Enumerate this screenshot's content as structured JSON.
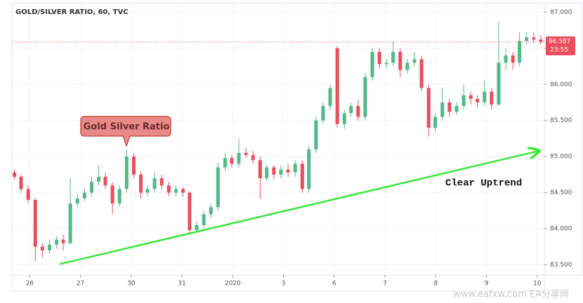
{
  "chart_data": {
    "type": "candlestick",
    "title": "GOLD/SILVER RATIO, 60, TVC",
    "up_color": "#53b987",
    "down_color": "#eb4d5c",
    "grid": true,
    "xlim": [
      -0.35,
      10.14
    ],
    "ylim": [
      83.36,
      87.12
    ],
    "xticks": [
      {
        "value": 0,
        "label": "26"
      },
      {
        "value": 1,
        "label": "27"
      },
      {
        "value": 2,
        "label": "30"
      },
      {
        "value": 3,
        "label": "31"
      },
      {
        "value": 4,
        "label": "2020"
      },
      {
        "value": 5,
        "label": "3"
      },
      {
        "value": 6,
        "label": "6"
      },
      {
        "value": 7,
        "label": "7"
      },
      {
        "value": 8,
        "label": "8"
      },
      {
        "value": 9,
        "label": "9"
      },
      {
        "value": 10,
        "label": "10"
      }
    ],
    "yticks": [
      {
        "value": 83.5,
        "label": "83.500"
      },
      {
        "value": 84,
        "label": "84.000"
      },
      {
        "value": 84.5,
        "label": "84.500"
      },
      {
        "value": 85,
        "label": "85.000"
      },
      {
        "value": 85.5,
        "label": "85.500"
      },
      {
        "value": 86,
        "label": "86.000"
      },
      {
        "value": 86.5,
        "label": "86.500"
      },
      {
        "value": 87,
        "label": "87.000"
      }
    ],
    "candles": [
      [
        -0.3,
        84.78,
        84.82,
        84.68,
        84.72
      ],
      [
        -0.17,
        84.72,
        84.75,
        84.5,
        84.55
      ],
      [
        -0.03,
        84.55,
        84.6,
        84.35,
        84.4
      ],
      [
        0.11,
        84.4,
        84.42,
        83.55,
        83.75
      ],
      [
        0.25,
        83.75,
        83.8,
        83.6,
        83.7
      ],
      [
        0.39,
        83.7,
        83.85,
        83.65,
        83.78
      ],
      [
        0.53,
        83.78,
        83.9,
        83.72,
        83.85
      ],
      [
        0.66,
        83.85,
        83.92,
        83.7,
        83.8
      ],
      [
        0.8,
        83.8,
        84.7,
        83.78,
        84.35
      ],
      [
        0.94,
        84.35,
        84.48,
        84.3,
        84.42
      ],
      [
        1.08,
        84.42,
        84.55,
        84.38,
        84.5
      ],
      [
        1.22,
        84.5,
        84.72,
        84.45,
        84.65
      ],
      [
        1.36,
        84.65,
        84.88,
        84.6,
        84.72
      ],
      [
        1.49,
        84.72,
        84.78,
        84.55,
        84.6
      ],
      [
        1.63,
        84.6,
        84.65,
        84.2,
        84.35
      ],
      [
        1.77,
        84.35,
        84.6,
        84.3,
        84.55
      ],
      [
        1.91,
        84.55,
        85.1,
        84.5,
        85.0
      ],
      [
        2.05,
        85.0,
        85.05,
        84.7,
        84.75
      ],
      [
        2.19,
        84.75,
        84.8,
        84.42,
        84.5
      ],
      [
        2.32,
        84.5,
        84.6,
        84.45,
        84.55
      ],
      [
        2.46,
        84.55,
        84.78,
        84.5,
        84.7
      ],
      [
        2.6,
        84.7,
        84.75,
        84.55,
        84.6
      ],
      [
        2.74,
        84.6,
        84.65,
        84.45,
        84.5
      ],
      [
        2.88,
        84.5,
        84.6,
        84.45,
        84.55
      ],
      [
        3.02,
        84.55,
        84.58,
        84.45,
        84.5
      ],
      [
        3.15,
        84.5,
        84.52,
        83.92,
        83.98
      ],
      [
        3.29,
        83.98,
        84.1,
        83.95,
        84.05
      ],
      [
        3.43,
        84.05,
        84.25,
        84.0,
        84.2
      ],
      [
        3.57,
        84.2,
        84.35,
        84.15,
        84.3
      ],
      [
        3.71,
        84.3,
        84.92,
        84.25,
        84.85
      ],
      [
        3.85,
        84.85,
        85.05,
        84.8,
        84.98
      ],
      [
        3.98,
        84.98,
        85.02,
        84.85,
        84.9
      ],
      [
        4.12,
        84.9,
        85.25,
        84.85,
        85.05
      ],
      [
        4.26,
        85.05,
        85.12,
        84.98,
        85.02
      ],
      [
        4.4,
        85.02,
        85.08,
        84.9,
        84.95
      ],
      [
        4.54,
        84.95,
        85.0,
        84.42,
        84.7
      ],
      [
        4.67,
        84.7,
        84.9,
        84.65,
        84.85
      ],
      [
        4.81,
        84.85,
        84.88,
        84.68,
        84.75
      ],
      [
        4.95,
        84.75,
        84.88,
        84.7,
        84.82
      ],
      [
        5.09,
        84.82,
        84.9,
        84.72,
        84.78
      ],
      [
        5.23,
        84.78,
        84.95,
        84.72,
        84.9
      ],
      [
        5.37,
        84.9,
        84.95,
        84.5,
        84.55
      ],
      [
        5.5,
        84.55,
        85.15,
        84.5,
        85.1
      ],
      [
        5.64,
        85.1,
        85.55,
        85.05,
        85.5
      ],
      [
        5.78,
        85.5,
        85.75,
        85.45,
        85.7
      ],
      [
        5.92,
        85.7,
        86.0,
        85.65,
        85.95
      ],
      [
        6.06,
        86.5,
        86.53,
        85.4,
        85.45
      ],
      [
        6.2,
        85.45,
        85.65,
        85.38,
        85.6
      ],
      [
        6.33,
        85.6,
        85.75,
        85.55,
        85.7
      ],
      [
        6.47,
        85.7,
        85.78,
        85.5,
        85.55
      ],
      [
        6.61,
        85.55,
        86.15,
        85.5,
        86.1
      ],
      [
        6.75,
        86.1,
        86.5,
        86.05,
        86.45
      ],
      [
        6.89,
        86.45,
        86.5,
        86.22,
        86.28
      ],
      [
        7.03,
        86.28,
        86.35,
        86.22,
        86.3
      ],
      [
        7.16,
        86.3,
        86.6,
        86.25,
        86.45
      ],
      [
        7.3,
        86.45,
        86.5,
        86.1,
        86.2
      ],
      [
        7.44,
        86.2,
        86.35,
        86.15,
        86.3
      ],
      [
        7.58,
        86.3,
        86.45,
        86.25,
        86.35
      ],
      [
        7.72,
        86.35,
        86.4,
        85.9,
        85.95
      ],
      [
        7.86,
        85.95,
        86.0,
        85.28,
        85.4
      ],
      [
        7.99,
        85.4,
        85.6,
        85.35,
        85.55
      ],
      [
        8.13,
        85.55,
        85.95,
        85.5,
        85.75
      ],
      [
        8.27,
        85.75,
        85.8,
        85.55,
        85.62
      ],
      [
        8.41,
        85.62,
        85.75,
        85.58,
        85.7
      ],
      [
        8.55,
        85.7,
        86.0,
        85.65,
        85.85
      ],
      [
        8.69,
        85.85,
        85.9,
        85.72,
        85.8
      ],
      [
        8.82,
        85.8,
        85.85,
        85.68,
        85.75
      ],
      [
        8.96,
        85.75,
        86.05,
        85.7,
        85.9
      ],
      [
        9.1,
        85.9,
        85.95,
        85.65,
        85.72
      ],
      [
        9.24,
        85.72,
        86.87,
        85.7,
        86.3
      ],
      [
        9.38,
        86.3,
        86.5,
        86.2,
        86.4
      ],
      [
        9.52,
        86.4,
        86.45,
        86.2,
        86.3
      ],
      [
        9.65,
        86.3,
        86.72,
        86.25,
        86.6
      ],
      [
        9.79,
        86.6,
        86.72,
        86.55,
        86.65
      ],
      [
        9.93,
        86.65,
        86.72,
        86.58,
        86.62
      ],
      [
        10.07,
        86.62,
        86.68,
        86.55,
        86.59
      ]
    ],
    "last_price": 86.587,
    "countdown": "23:55",
    "trendline": {
      "color": "#39e639",
      "start": [
        0.59,
        83.51
      ],
      "end": [
        10.04,
        85.08
      ]
    },
    "callout": "Gold Silver Ratio",
    "note": "Clear Uptrend",
    "watermark": "www.eafxw.com  EA分享网"
  }
}
